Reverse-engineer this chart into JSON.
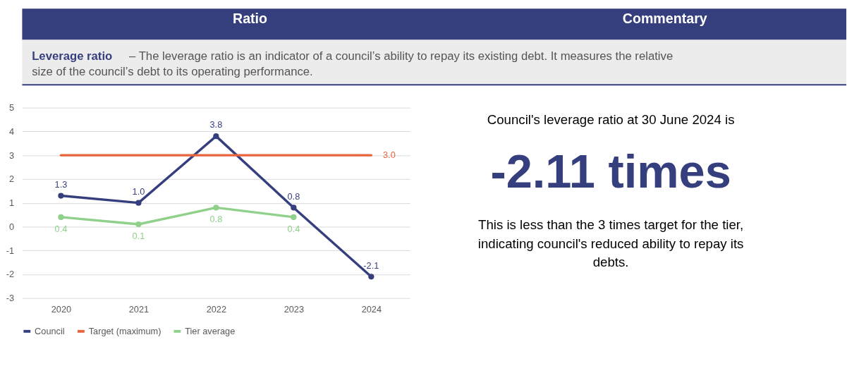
{
  "chart_data": {
    "type": "line",
    "categories": [
      "2020",
      "2021",
      "2022",
      "2023",
      "2024"
    ],
    "series": [
      {
        "name": "Council",
        "color": "#363f7e",
        "marker": "circle",
        "values": [
          1.3,
          1.0,
          3.8,
          0.8,
          -2.1
        ],
        "value_labels": [
          "1.3",
          "1.0",
          "3.8",
          "0.8",
          "-2.1"
        ]
      },
      {
        "name": "Target (maximum)",
        "color": "#e8643c",
        "marker": "none",
        "values": [
          3.0,
          3.0,
          3.0,
          3.0,
          3.0
        ],
        "value_labels": [
          null,
          null,
          null,
          null,
          "3.0"
        ]
      },
      {
        "name": "Tier average",
        "color": "#8fd08a",
        "marker": "circle",
        "values": [
          0.4,
          0.1,
          0.8,
          0.4,
          null
        ],
        "value_labels": [
          "0.4",
          "0.1",
          "0.8",
          "0.4",
          null
        ]
      }
    ],
    "ylim": [
      -3,
      5
    ],
    "yticks": [
      -3,
      -2,
      -1,
      0,
      1,
      2,
      3,
      4,
      5
    ],
    "grid": "y",
    "legend": "bottom",
    "annotations": [
      "Ratio",
      "Commentary",
      "Leverage ratio",
      "– The leverage ratio is an indicator of a council’s ability to repay its existing debt. It measures the relative size of the council’s debt to its operating performance.",
      "Council's leverage ratio at 30 June 2024 is",
      "-2.11 times",
      "This is less than the 3 times target for the tier, indicating council's reduced ability to repay its debts."
    ]
  }
}
